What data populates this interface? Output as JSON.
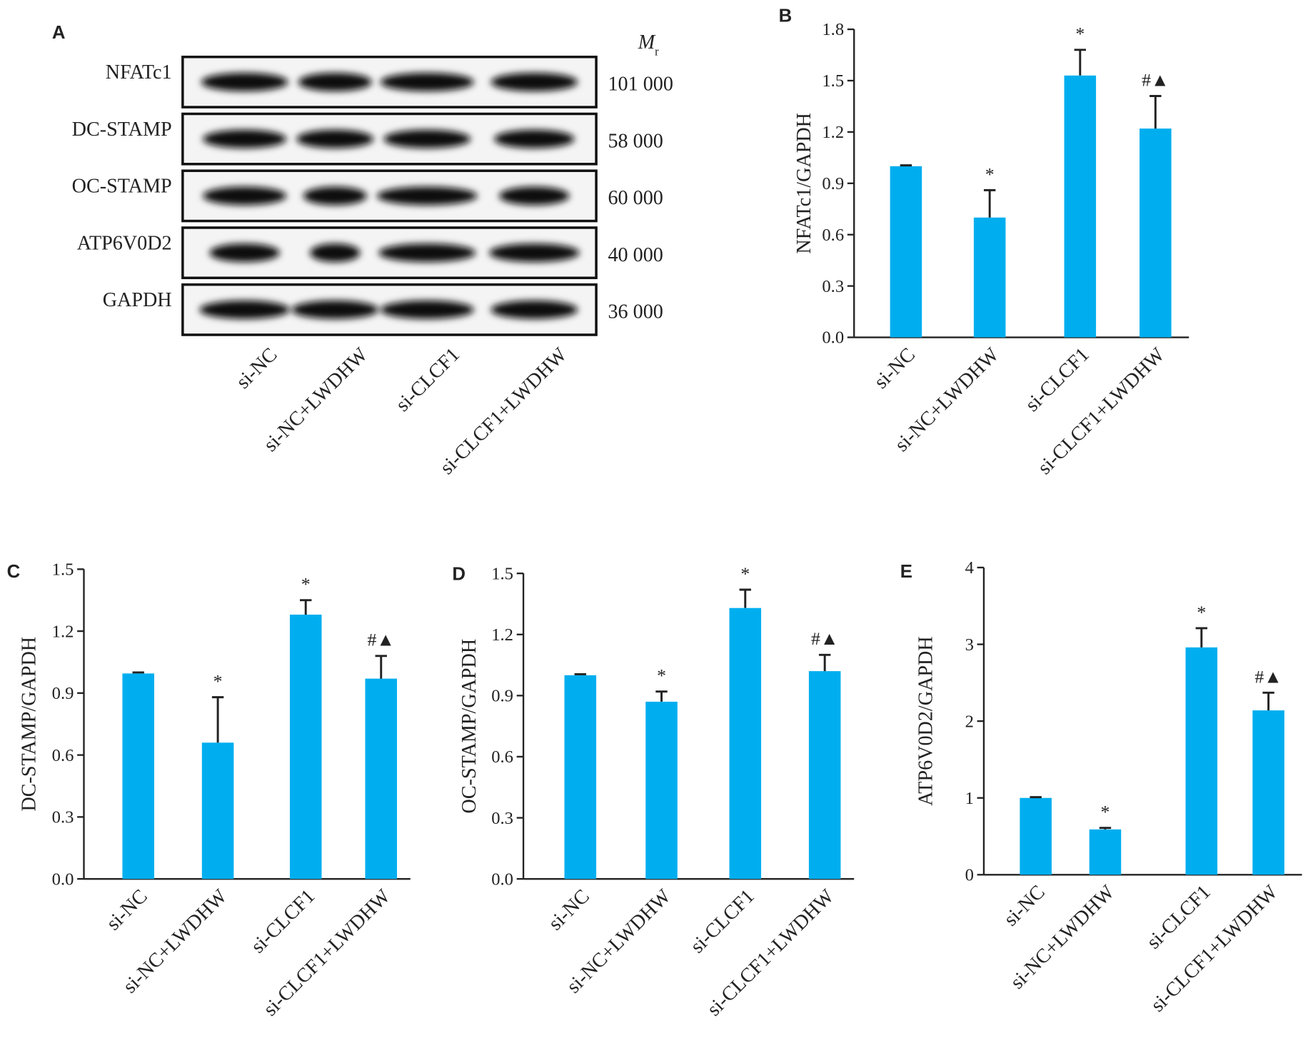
{
  "blot": {
    "panel": "A",
    "header": "M",
    "header_sub": "r",
    "rows": [
      {
        "protein": "NFATc1",
        "mr": "101  000"
      },
      {
        "protein": "DC-STAMP",
        "mr": "58 000"
      },
      {
        "protein": "OC-STAMP",
        "mr": "60 000"
      },
      {
        "protein": "ATP6V0D2",
        "mr": "40 000"
      },
      {
        "protein": "GAPDH",
        "mr": "36 000"
      }
    ],
    "lanes": [
      "si-NC",
      "si-NC+LWDHW",
      "si-CLCF1",
      "si-CLCF1+LWDHW"
    ]
  },
  "chart_data": [
    {
      "type": "bar",
      "panel": "B",
      "ylabel": "NFATc1/GAPDH",
      "categories": [
        "si-NC",
        "si-NC+LWDHW",
        "si-CLCF1",
        "si-CLCF1+LWDHW"
      ],
      "values": [
        1.0,
        0.7,
        1.53,
        1.22
      ],
      "errors": [
        0.005,
        0.16,
        0.15,
        0.19
      ],
      "annotations": [
        null,
        "*",
        "*",
        "#▲"
      ],
      "color": "#00aeef",
      "ylim": [
        0,
        1.8
      ],
      "yticks": [
        {
          "value": 0,
          "label": "0.0"
        },
        0.3,
        0.6,
        0.9,
        1.2,
        1.5,
        1.8
      ]
    },
    {
      "type": "bar",
      "panel": "C",
      "ylabel": "DC-STAMP/GAPDH",
      "categories": [
        "si-NC",
        "si-NC+LWDHW",
        "si-CLCF1",
        "si-CLCF1+LWDHW"
      ],
      "values": [
        0.995,
        0.66,
        1.28,
        0.97
      ],
      "errors": [
        0.005,
        0.22,
        0.07,
        0.11
      ],
      "annotations": [
        null,
        "*",
        "*",
        "#▲"
      ],
      "color": "#00aeef",
      "ylim": [
        0,
        1.5
      ],
      "yticks": [
        {
          "value": 0,
          "label": "0.0"
        },
        0.3,
        0.6,
        0.9,
        1.2,
        1.5
      ]
    },
    {
      "type": "bar",
      "panel": "D",
      "ylabel": "OC-STAMP/GAPDH",
      "categories": [
        "si-NC",
        "si-NC+LWDHW",
        "si-CLCF1",
        "si-CLCF1+LWDHW"
      ],
      "values": [
        1.0,
        0.87,
        1.33,
        1.02
      ],
      "errors": [
        0.005,
        0.05,
        0.09,
        0.08
      ],
      "annotations": [
        null,
        "*",
        "*",
        "#▲"
      ],
      "color": "#00aeef",
      "ylim": [
        0,
        1.5
      ],
      "yticks": [
        {
          "value": 0,
          "label": "0.0"
        },
        0.3,
        0.6,
        0.9,
        1.2,
        1.5
      ]
    },
    {
      "type": "bar",
      "panel": "E",
      "ylabel": "ATP6V0D2/GAPDH",
      "categories": [
        "si-NC",
        "si-NC+LWDHW",
        "si-CLCF1",
        "si-CLCF1+LWDHW"
      ],
      "values": [
        1.0,
        0.59,
        2.96,
        2.14
      ],
      "errors": [
        0.01,
        0.02,
        0.25,
        0.23
      ],
      "annotations": [
        null,
        "*",
        "*",
        "#▲"
      ],
      "color": "#00aeef",
      "ylim": [
        0,
        4
      ],
      "yticks": [
        0,
        1,
        2,
        3,
        4
      ]
    }
  ]
}
